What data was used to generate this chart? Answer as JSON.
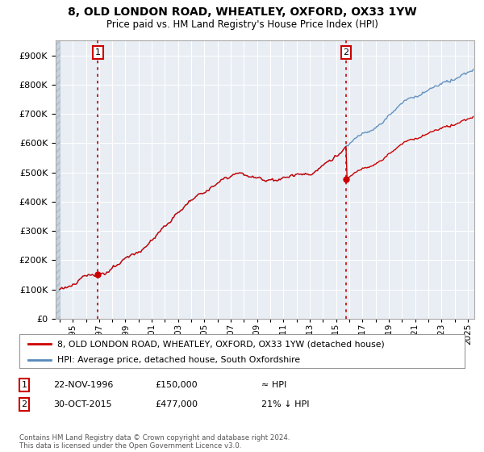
{
  "title_line1": "8, OLD LONDON ROAD, WHEATLEY, OXFORD, OX33 1YW",
  "title_line2": "Price paid vs. HM Land Registry's House Price Index (HPI)",
  "property_color": "#cc0000",
  "hpi_color": "#5588bb",
  "ylim": [
    0,
    950000
  ],
  "yticks": [
    0,
    100000,
    200000,
    300000,
    400000,
    500000,
    600000,
    700000,
    800000,
    900000
  ],
  "ytick_labels": [
    "£0",
    "£100K",
    "£200K",
    "£300K",
    "£400K",
    "£500K",
    "£600K",
    "£700K",
    "£800K",
    "£900K"
  ],
  "sale1_year": 1996.875,
  "sale1_price": 150000,
  "sale2_year": 2015.75,
  "sale2_price": 477000,
  "legend_line1": "8, OLD LONDON ROAD, WHEATLEY, OXFORD, OX33 1YW (detached house)",
  "legend_line2": "HPI: Average price, detached house, South Oxfordshire",
  "ann1_label": "1",
  "ann1_date": "22-NOV-1996",
  "ann1_price": "£150,000",
  "ann1_rel": "≈ HPI",
  "ann2_label": "2",
  "ann2_date": "30-OCT-2015",
  "ann2_price": "£477,000",
  "ann2_rel": "21% ↓ HPI",
  "footer": "Contains HM Land Registry data © Crown copyright and database right 2024.\nThis data is licensed under the Open Government Licence v3.0.",
  "background_color": "#ffffff",
  "plot_bg_color": "#e8eef4",
  "grid_color": "#ffffff",
  "hatch_color": "#c8d4dc"
}
